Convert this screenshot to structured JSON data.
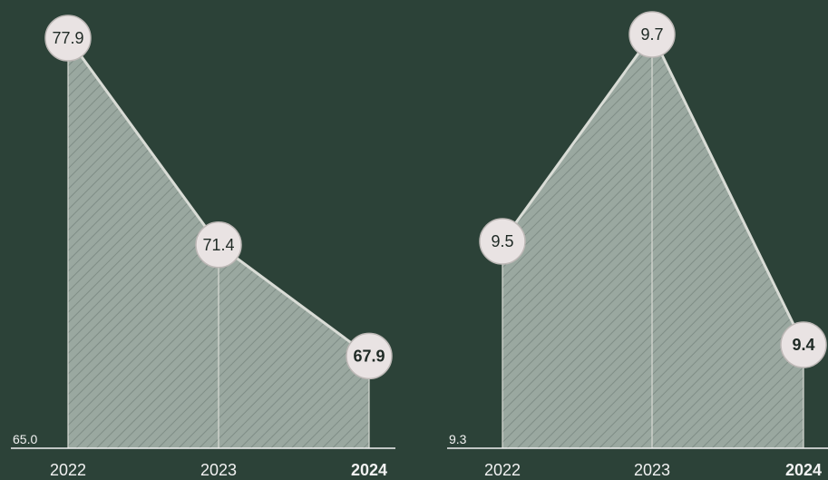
{
  "colors": {
    "background": "#2c4238",
    "area_fill": "#9aa8a0",
    "line": "#d9dcd6",
    "marker_fill": "#e9e3e3",
    "marker_text": "#1f2a25",
    "axis_text": "#f2f2f2"
  },
  "chart_data": [
    {
      "type": "area",
      "categories": [
        "2022",
        "2023",
        "2024"
      ],
      "series": [
        {
          "values": [
            77.9,
            71.4,
            67.9
          ]
        }
      ],
      "data_labels": [
        "77.9",
        "71.4",
        "67.9"
      ],
      "highlight_last": true,
      "baseline_label": "65.0",
      "ylim": [
        65.0,
        77.9
      ],
      "grid": false,
      "fill_pattern": "hatched"
    },
    {
      "type": "area",
      "categories": [
        "2022",
        "2023",
        "2024"
      ],
      "series": [
        {
          "values": [
            9.5,
            9.7,
            9.4
          ]
        }
      ],
      "data_labels": [
        "9.5",
        "9.7",
        "9.4"
      ],
      "highlight_last": true,
      "baseline_label": "9.3",
      "ylim": [
        9.3,
        9.7
      ],
      "grid": false,
      "fill_pattern": "hatched"
    }
  ]
}
